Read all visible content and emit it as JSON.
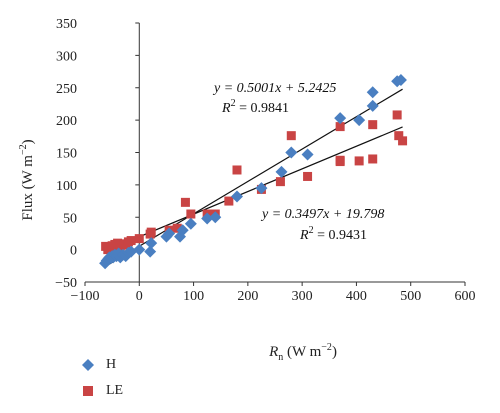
{
  "chart_data": {
    "type": "scatter",
    "xlabel_main": "R",
    "xlabel_sub": "n",
    "xlabel_unit_pre": " (W m",
    "xlabel_unit_sup": "−2",
    "xlabel_unit_post": ")",
    "ylabel_main": "Flux (W m",
    "ylabel_sup": "−2",
    "ylabel_post": ")",
    "xlim": [
      -100,
      600
    ],
    "ylim": [
      -50,
      350
    ],
    "xticks": [
      -100,
      0,
      100,
      200,
      300,
      400,
      500,
      600
    ],
    "xtick_labels": [
      "−100",
      "0",
      "100",
      "200",
      "300",
      "400",
      "500",
      "600"
    ],
    "yticks": [
      -50,
      0,
      50,
      100,
      150,
      200,
      250,
      300,
      350
    ],
    "ytick_labels": [
      "−50",
      "0",
      "50",
      "100",
      "150",
      "200",
      "250",
      "300",
      "350"
    ],
    "grid": false,
    "legend_position": "bottom-left",
    "series": [
      {
        "name": "H",
        "color": "#4a7fc1",
        "marker": "diamond",
        "points": [
          [
            -63,
            -21
          ],
          [
            -60,
            -17
          ],
          [
            -57,
            -14
          ],
          [
            -55,
            -12
          ],
          [
            -52,
            -13
          ],
          [
            -50,
            -10
          ],
          [
            -48,
            -12
          ],
          [
            -45,
            -8
          ],
          [
            -42,
            -10
          ],
          [
            -38,
            -6
          ],
          [
            -35,
            -12
          ],
          [
            -30,
            -8
          ],
          [
            -25,
            -10
          ],
          [
            -20,
            -5
          ],
          [
            -15,
            -3
          ],
          [
            0,
            0
          ],
          [
            20,
            -3
          ],
          [
            22,
            10
          ],
          [
            50,
            20
          ],
          [
            55,
            25
          ],
          [
            75,
            20
          ],
          [
            80,
            30
          ],
          [
            95,
            40
          ],
          [
            125,
            48
          ],
          [
            140,
            50
          ],
          [
            180,
            82
          ],
          [
            225,
            95
          ],
          [
            262,
            120
          ],
          [
            280,
            150
          ],
          [
            310,
            147
          ],
          [
            370,
            203
          ],
          [
            405,
            200
          ],
          [
            430,
            222
          ],
          [
            430,
            243
          ],
          [
            475,
            260
          ],
          [
            482,
            262
          ]
        ],
        "fit": {
          "slope": 0.5001,
          "intercept": 5.2425,
          "x_range": [
            -62,
            485
          ]
        },
        "eq_label": "y = 0.5001x + 5.2425",
        "r2_label": "R",
        "r2_value": " = 0.9841"
      },
      {
        "name": "LE",
        "color": "#c94444",
        "marker": "square",
        "points": [
          [
            -62,
            5
          ],
          [
            -58,
            0
          ],
          [
            -55,
            3
          ],
          [
            -50,
            6
          ],
          [
            -45,
            8
          ],
          [
            -40,
            10
          ],
          [
            -35,
            4
          ],
          [
            -30,
            7
          ],
          [
            -25,
            9
          ],
          [
            -20,
            12
          ],
          [
            -15,
            14
          ],
          [
            0,
            17
          ],
          [
            20,
            24
          ],
          [
            22,
            27
          ],
          [
            55,
            30
          ],
          [
            70,
            33
          ],
          [
            85,
            73
          ],
          [
            95,
            55
          ],
          [
            125,
            55
          ],
          [
            140,
            55
          ],
          [
            165,
            75
          ],
          [
            180,
            123
          ],
          [
            225,
            93
          ],
          [
            260,
            105
          ],
          [
            280,
            176
          ],
          [
            310,
            113
          ],
          [
            370,
            136
          ],
          [
            370,
            138
          ],
          [
            370,
            190
          ],
          [
            405,
            137
          ],
          [
            430,
            193
          ],
          [
            430,
            140
          ],
          [
            475,
            208
          ],
          [
            478,
            176
          ],
          [
            485,
            168
          ]
        ],
        "fit": {
          "slope": 0.3497,
          "intercept": 19.798,
          "x_range": [
            -62,
            485
          ]
        },
        "eq_label": "y = 0.3497x + 19.798",
        "r2_label": "R",
        "r2_value": " = 0.9431"
      }
    ]
  },
  "legend": {
    "h_label": "H",
    "le_label": "LE"
  }
}
